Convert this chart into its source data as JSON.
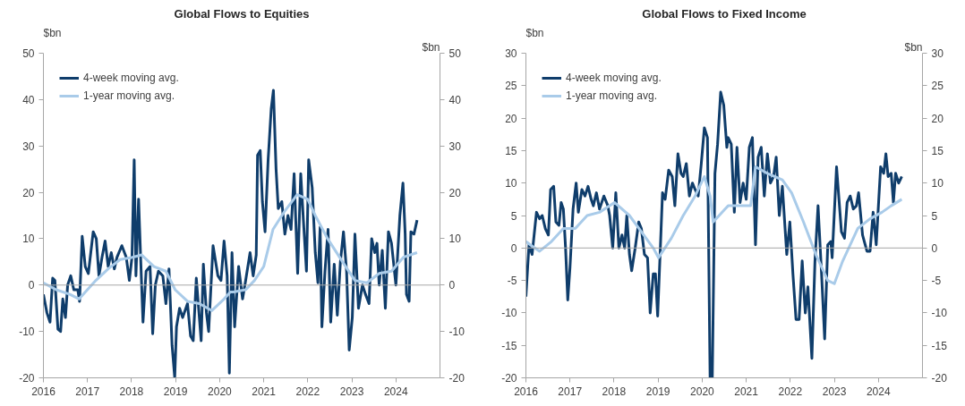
{
  "chart_data": [
    {
      "type": "line",
      "title": "Global Flows to Equities",
      "ylabel": "$bn",
      "y2label": "$bn",
      "xlim": [
        2016,
        2025
      ],
      "xticks": [
        2016,
        2017,
        2018,
        2019,
        2020,
        2021,
        2022,
        2023,
        2024
      ],
      "ylim": [
        -20,
        50
      ],
      "yticks": [
        -20,
        -10,
        0,
        10,
        20,
        30,
        40,
        50
      ],
      "y2lim": [
        -20,
        50
      ],
      "y2ticks": [
        -20,
        -10,
        0,
        10,
        20,
        30,
        40,
        50
      ],
      "grid": false,
      "legend": "top left",
      "ref_lines": [
        {
          "axis": "y",
          "value": 0,
          "color": "#a6a6a6"
        }
      ],
      "series": [
        {
          "name": "4-week moving avg.",
          "color": "#0f3d6b",
          "x": [
            2016.0,
            2016.08,
            2016.15,
            2016.21,
            2016.26,
            2016.33,
            2016.39,
            2016.44,
            2016.5,
            2016.55,
            2016.62,
            2016.69,
            2016.78,
            2016.82,
            2016.88,
            2016.95,
            2017.02,
            2017.13,
            2017.2,
            2017.26,
            2017.33,
            2017.4,
            2017.47,
            2017.54,
            2017.61,
            2017.67,
            2017.78,
            2017.88,
            2017.95,
            2018.01,
            2018.06,
            2018.1,
            2018.16,
            2018.21,
            2018.26,
            2018.33,
            2018.42,
            2018.48,
            2018.54,
            2018.61,
            2018.71,
            2018.78,
            2018.85,
            2018.92,
            2018.98,
            2019.02,
            2019.09,
            2019.16,
            2019.27,
            2019.34,
            2019.4,
            2019.47,
            2019.58,
            2019.63,
            2019.7,
            2019.75,
            2019.85,
            2019.96,
            2020.03,
            2020.1,
            2020.17,
            2020.22,
            2020.28,
            2020.34,
            2020.43,
            2020.52,
            2020.59,
            2020.69,
            2020.76,
            2020.83,
            2020.86,
            2020.92,
            2020.97,
            2021.03,
            2021.1,
            2021.17,
            2021.22,
            2021.28,
            2021.33,
            2021.41,
            2021.48,
            2021.55,
            2021.62,
            2021.69,
            2021.77,
            2021.84,
            2021.9,
            2021.97,
            2022.02,
            2022.1,
            2022.17,
            2022.23,
            2022.28,
            2022.32,
            2022.39,
            2022.46,
            2022.52,
            2022.6,
            2022.67,
            2022.74,
            2022.81,
            2022.88,
            2022.94,
            2023.01,
            2023.07,
            2023.15,
            2023.24,
            2023.31,
            2023.39,
            2023.45,
            2023.52,
            2023.57,
            2023.62,
            2023.69,
            2023.76,
            2023.83,
            2023.9,
            2024.0,
            2024.09,
            2024.16,
            2024.21,
            2024.24,
            2024.3,
            2024.34,
            2024.41,
            2024.48
          ],
          "values": [
            -2,
            -6,
            -8,
            1.5,
            1,
            -9.5,
            -10,
            -3,
            -7,
            0,
            2,
            -1,
            -1,
            -3.5,
            10.5,
            4,
            2.5,
            11.5,
            10,
            2,
            6,
            9.5,
            4,
            7,
            3.5,
            6,
            8.5,
            6,
            1,
            6,
            27,
            2,
            18.5,
            5,
            -8,
            3,
            4,
            -10.5,
            0,
            3,
            2,
            -4,
            3.5,
            -13,
            -20,
            -9,
            -5,
            -7,
            -4,
            -11,
            -12,
            1.5,
            -12,
            4.5,
            -6,
            -10,
            8.5,
            2,
            1,
            9.5,
            2,
            -19,
            7,
            -9,
            4,
            -3,
            1,
            7,
            2,
            6.5,
            28,
            29,
            18,
            11.5,
            27,
            38,
            42,
            25,
            16.5,
            18,
            11,
            15,
            12,
            24,
            2.5,
            24,
            14,
            3,
            27,
            21,
            7,
            0.5,
            12.5,
            -9,
            3,
            12,
            -8,
            4.5,
            -6.5,
            5,
            11.5,
            3,
            -14,
            -7,
            11,
            -5,
            0,
            -2,
            -4,
            10,
            7,
            9,
            0,
            7.5,
            -5,
            11.5,
            9,
            0,
            15,
            22,
            11,
            -2,
            -3.5,
            11.5,
            11,
            14
          ]
        },
        {
          "name": "1-year moving avg.",
          "color": "#a9cbe9",
          "x": [
            2016.0,
            2016.29,
            2016.6,
            2016.81,
            2017.19,
            2017.47,
            2017.74,
            2018.02,
            2018.23,
            2018.51,
            2018.78,
            2018.99,
            2019.27,
            2019.54,
            2019.82,
            2020.1,
            2020.24,
            2020.31,
            2020.59,
            2020.79,
            2021.0,
            2021.21,
            2021.48,
            2021.76,
            2022.0,
            2022.17,
            2022.45,
            2022.79,
            2023.07,
            2023.34,
            2023.62,
            2023.9,
            2024.17,
            2024.48
          ],
          "values": [
            0.5,
            -1,
            -2,
            -3,
            1,
            3.5,
            5.5,
            6,
            6.5,
            4,
            3,
            -1,
            -3.5,
            -4,
            -5.5,
            -3,
            -1.5,
            -1.5,
            -1,
            1,
            4,
            12,
            16,
            19.5,
            18.5,
            15,
            10,
            5,
            1,
            0.5,
            2.5,
            3,
            6,
            7
          ]
        }
      ]
    },
    {
      "type": "line",
      "title": "Global Flows to Fixed Income",
      "ylabel": "$bn",
      "y2label": "$bn",
      "xlim": [
        2016,
        2025
      ],
      "xticks": [
        2016,
        2017,
        2018,
        2019,
        2020,
        2021,
        2022,
        2023,
        2024
      ],
      "ylim": [
        -20,
        30
      ],
      "yticks": [
        -20,
        -15,
        -10,
        -5,
        0,
        5,
        10,
        15,
        20,
        25,
        30
      ],
      "y2lim": [
        -20,
        30
      ],
      "y2ticks": [
        -20,
        -15,
        -10,
        -5,
        0,
        5,
        10,
        15,
        20,
        25,
        30
      ],
      "grid": false,
      "legend": "top left",
      "ref_lines": [
        {
          "axis": "y",
          "value": 0,
          "color": "#a6a6a6"
        }
      ],
      "series": [
        {
          "name": "4-week moving avg.",
          "color": "#0f3d6b",
          "x": [
            2016.0,
            2016.07,
            2016.14,
            2016.24,
            2016.31,
            2016.37,
            2016.44,
            2016.51,
            2016.56,
            2016.63,
            2016.68,
            2016.75,
            2016.8,
            2016.85,
            2016.9,
            2016.95,
            2017.0,
            2017.07,
            2017.14,
            2017.19,
            2017.27,
            2017.34,
            2017.41,
            2017.48,
            2017.53,
            2017.6,
            2017.67,
            2017.77,
            2017.86,
            2017.9,
            2017.97,
            2018.04,
            2018.11,
            2018.18,
            2018.24,
            2018.29,
            2018.35,
            2018.4,
            2018.48,
            2018.56,
            2018.62,
            2018.69,
            2018.76,
            2018.82,
            2018.89,
            2018.94,
            2018.99,
            2019.1,
            2019.16,
            2019.24,
            2019.32,
            2019.38,
            2019.45,
            2019.52,
            2019.57,
            2019.64,
            2019.71,
            2019.78,
            2019.84,
            2019.91,
            2019.98,
            2020.05,
            2020.12,
            2020.18,
            2020.23,
            2020.29,
            2020.35,
            2020.42,
            2020.49,
            2020.56,
            2020.59,
            2020.66,
            2020.73,
            2020.79,
            2020.86,
            2020.93,
            2021.0,
            2021.07,
            2021.14,
            2021.21,
            2021.27,
            2021.34,
            2021.41,
            2021.48,
            2021.55,
            2021.62,
            2021.68,
            2021.75,
            2021.82,
            2021.92,
            2021.99,
            2022.06,
            2022.13,
            2022.2,
            2022.27,
            2022.34,
            2022.4,
            2022.49,
            2022.56,
            2022.63,
            2022.71,
            2022.78,
            2022.85,
            2022.92,
            2022.95,
            2023.05,
            2023.16,
            2023.23,
            2023.29,
            2023.36,
            2023.43,
            2023.5,
            2023.55,
            2023.64,
            2023.74,
            2023.81,
            2023.88,
            2023.95,
            2024.05,
            2024.12,
            2024.17,
            2024.22,
            2024.29,
            2024.34,
            2024.39,
            2024.46,
            2024.53
          ],
          "values": [
            -7.5,
            0.5,
            -1,
            5.5,
            4.5,
            5,
            3,
            2,
            9,
            9.5,
            4,
            3.5,
            7,
            6,
            0,
            -8,
            -3,
            6,
            10,
            5.5,
            9,
            8,
            9.5,
            7.5,
            6.5,
            8.5,
            6,
            8,
            6.5,
            5,
            0,
            8.5,
            0,
            2,
            0,
            5,
            -1,
            -3.5,
            0,
            4,
            3,
            -1,
            -1.5,
            -10,
            -4,
            -4,
            -10.5,
            8.5,
            7.5,
            12,
            11,
            6.5,
            14.5,
            11.5,
            11,
            13,
            8,
            10,
            9,
            8,
            13,
            18.5,
            17,
            -20,
            -20,
            11.5,
            16,
            24,
            22,
            15.5,
            17,
            16,
            5.5,
            15.5,
            7,
            10,
            7.5,
            15.5,
            17,
            0.5,
            14,
            15.5,
            8,
            14.5,
            10,
            11,
            14,
            5,
            9.5,
            -1,
            4,
            -4,
            -11,
            -11,
            -2,
            -10,
            -6,
            -17,
            -2,
            6.5,
            -4,
            -14,
            0.5,
            1,
            -1.5,
            12.5,
            2.5,
            1.5,
            7,
            8,
            6,
            6.5,
            8.5,
            2,
            -0.5,
            -0.5,
            5.5,
            0.5,
            12.5,
            11.5,
            14.5,
            11,
            11.5,
            7,
            11.5,
            10,
            11
          ]
        },
        {
          "name": "1-year moving avg.",
          "color": "#a9cbe9",
          "x": [
            2016.0,
            2016.1,
            2016.31,
            2016.58,
            2016.85,
            2017.12,
            2017.39,
            2017.67,
            2018.01,
            2018.35,
            2018.62,
            2018.89,
            2019.01,
            2019.3,
            2019.57,
            2019.84,
            2020.05,
            2020.18,
            2020.25,
            2020.52,
            2020.59,
            2021.0,
            2021.1,
            2021.21,
            2021.48,
            2021.82,
            2022.03,
            2022.3,
            2022.58,
            2022.85,
            2023.0,
            2023.19,
            2023.53,
            2023.81,
            2024.08,
            2024.29,
            2024.53
          ],
          "values": [
            1,
            0.5,
            -0.5,
            1,
            3,
            3,
            5,
            5.5,
            7,
            5,
            2.5,
            0,
            -1.5,
            1.5,
            5,
            8,
            11,
            8,
            4,
            6,
            6.5,
            6.5,
            6.5,
            12.5,
            11.5,
            10.5,
            8.5,
            4,
            -1,
            -5,
            -5.5,
            -2,
            3,
            4.5,
            5.5,
            6.5,
            7.5
          ]
        }
      ]
    }
  ]
}
